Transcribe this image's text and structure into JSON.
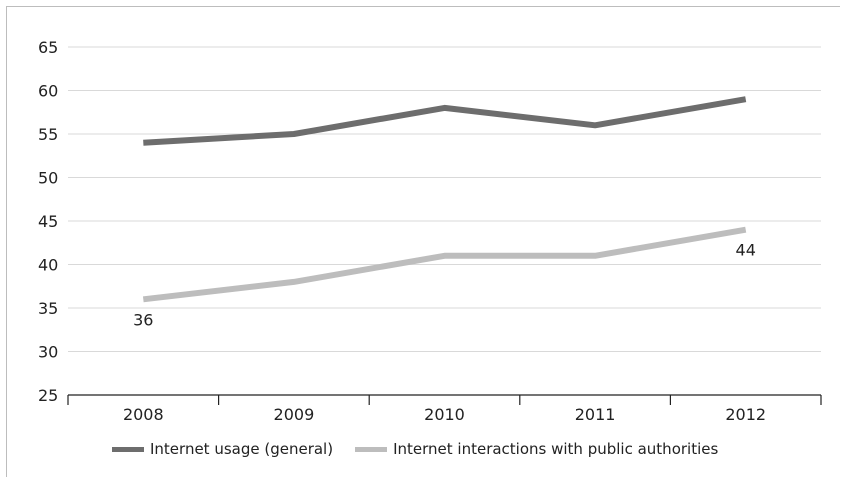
{
  "chart_data": {
    "type": "line",
    "title": "",
    "xlabel": "",
    "ylabel": "",
    "categories": [
      "2008",
      "2009",
      "2010",
      "2011",
      "2012"
    ],
    "ylim": [
      25,
      65
    ],
    "yticks": [
      25,
      30,
      35,
      40,
      45,
      50,
      55,
      60,
      65
    ],
    "grid": true,
    "legend_position": "bottom",
    "series": [
      {
        "name": "Internet usage (general)",
        "color": "#6d6d6d",
        "values": [
          54,
          55,
          58,
          56,
          59
        ]
      },
      {
        "name": "Internet interactions with public authorities",
        "color": "#bdbdbd",
        "values": [
          36,
          38,
          41,
          41,
          44
        ]
      }
    ],
    "annotations": [
      {
        "series": 1,
        "index": 0,
        "text": "36",
        "position": "below"
      },
      {
        "series": 1,
        "index": 4,
        "text": "44",
        "position": "below"
      }
    ]
  }
}
